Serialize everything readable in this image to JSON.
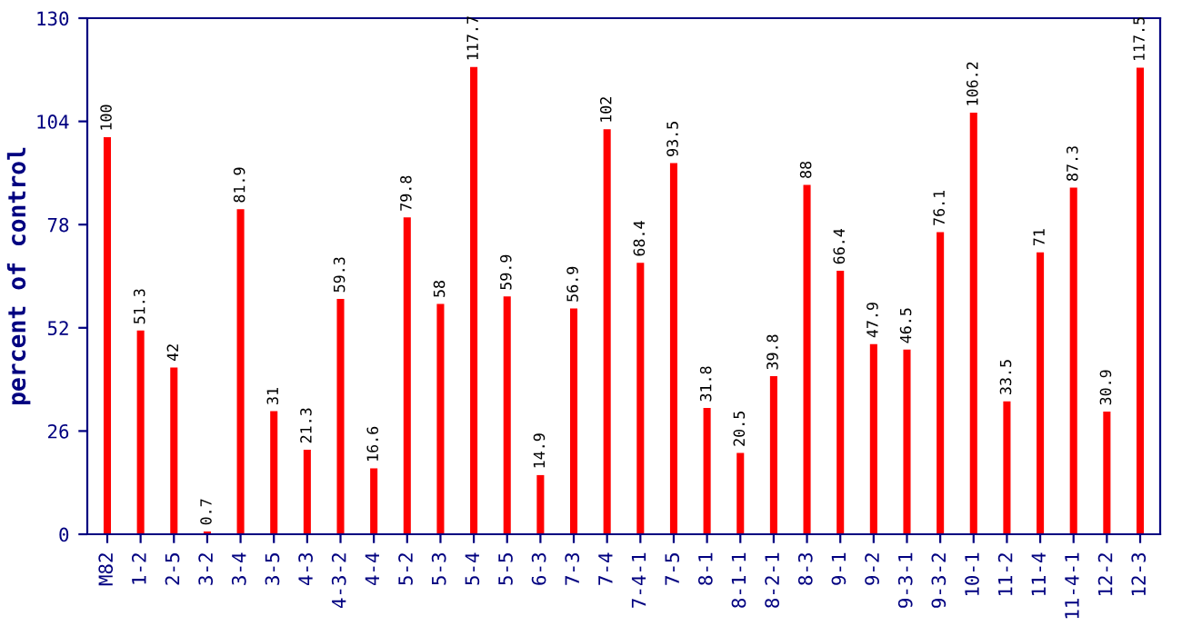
{
  "chart_data": {
    "type": "bar",
    "ylabel": "percent of control",
    "categories": [
      "M82",
      "1-2",
      "2-5",
      "3-2",
      "3-4",
      "3-5",
      "4-3",
      "4-3-2",
      "4-4",
      "5-2",
      "5-3",
      "5-4",
      "5-5",
      "6-3",
      "7-3",
      "7-4",
      "7-4-1",
      "7-5",
      "8-1",
      "8-1-1",
      "8-2-1",
      "8-3",
      "9-1",
      "9-2",
      "9-3-1",
      "9-3-2",
      "10-1",
      "11-2",
      "11-4",
      "11-4-1",
      "12-2",
      "12-3"
    ],
    "values": [
      100,
      51.3,
      42,
      0.7,
      81.9,
      31,
      21.3,
      59.3,
      16.6,
      79.8,
      58,
      117.7,
      59.9,
      14.9,
      56.9,
      102,
      68.4,
      93.5,
      31.8,
      20.5,
      39.8,
      88,
      66.4,
      47.9,
      46.5,
      76.1,
      106.2,
      33.5,
      71,
      87.3,
      30.9,
      117.5
    ],
    "color": "#ff0000",
    "ylim": [
      0,
      130
    ],
    "yticks": [
      0,
      26,
      52,
      78,
      104,
      130
    ],
    "data_labels": true,
    "grid": false,
    "legend": false
  }
}
